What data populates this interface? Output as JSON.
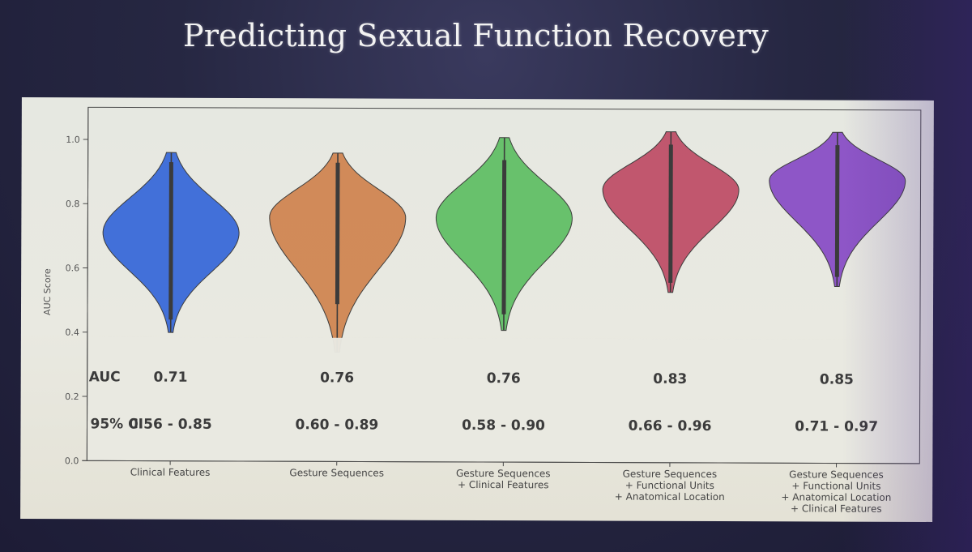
{
  "slide": {
    "title": "Predicting Sexual Function Recovery"
  },
  "colors": {
    "background": "#23233c",
    "panel": "#e7e8e0",
    "violin_stroke": "#333333",
    "inner_line": "#3b3b3b"
  },
  "chart_data": {
    "type": "violin",
    "ylabel": "AUC Score",
    "ylim": [
      0.0,
      1.1
    ],
    "yticks": [
      "0.0",
      "0.2",
      "0.4",
      "0.6",
      "0.8",
      "1.0"
    ],
    "categories": [
      [
        "Clinical Features"
      ],
      [
        "Gesture Sequences"
      ],
      [
        "Gesture Sequences",
        "+ Clinical Features"
      ],
      [
        "Gesture Sequences",
        "+ Functional Units",
        "+ Anatomical Location"
      ],
      [
        "Gesture Sequences",
        "+ Functional Units",
        "+ Anatomical Location",
        "+ Clinical Features"
      ]
    ],
    "series": [
      {
        "color": "#3a6ad9",
        "min": 0.4,
        "max": 0.96,
        "mode": 0.71,
        "q1": 0.44,
        "q3": 0.93,
        "auc": "0.71",
        "ci": "0.56 - 0.85"
      },
      {
        "color": "#d08652",
        "min": 0.34,
        "max": 0.96,
        "mode": 0.76,
        "q1": 0.49,
        "q3": 0.93,
        "auc": "0.76",
        "ci": "0.60 - 0.89"
      },
      {
        "color": "#62bf66",
        "min": 0.41,
        "max": 1.01,
        "mode": 0.76,
        "q1": 0.46,
        "q3": 0.94,
        "auc": "0.76",
        "ci": "0.58 - 0.90"
      },
      {
        "color": "#bf5068",
        "min": 0.53,
        "max": 1.03,
        "mode": 0.85,
        "q1": 0.56,
        "q3": 0.99,
        "auc": "0.83",
        "ci": "0.66 - 0.96"
      },
      {
        "color": "#8a4fc6",
        "min": 0.55,
        "max": 1.03,
        "mode": 0.88,
        "q1": 0.58,
        "q3": 0.99,
        "auc": "0.85",
        "ci": "0.71 - 0.97"
      }
    ],
    "overlay": {
      "auc_label": "AUC",
      "ci_label": "95% CI"
    }
  }
}
